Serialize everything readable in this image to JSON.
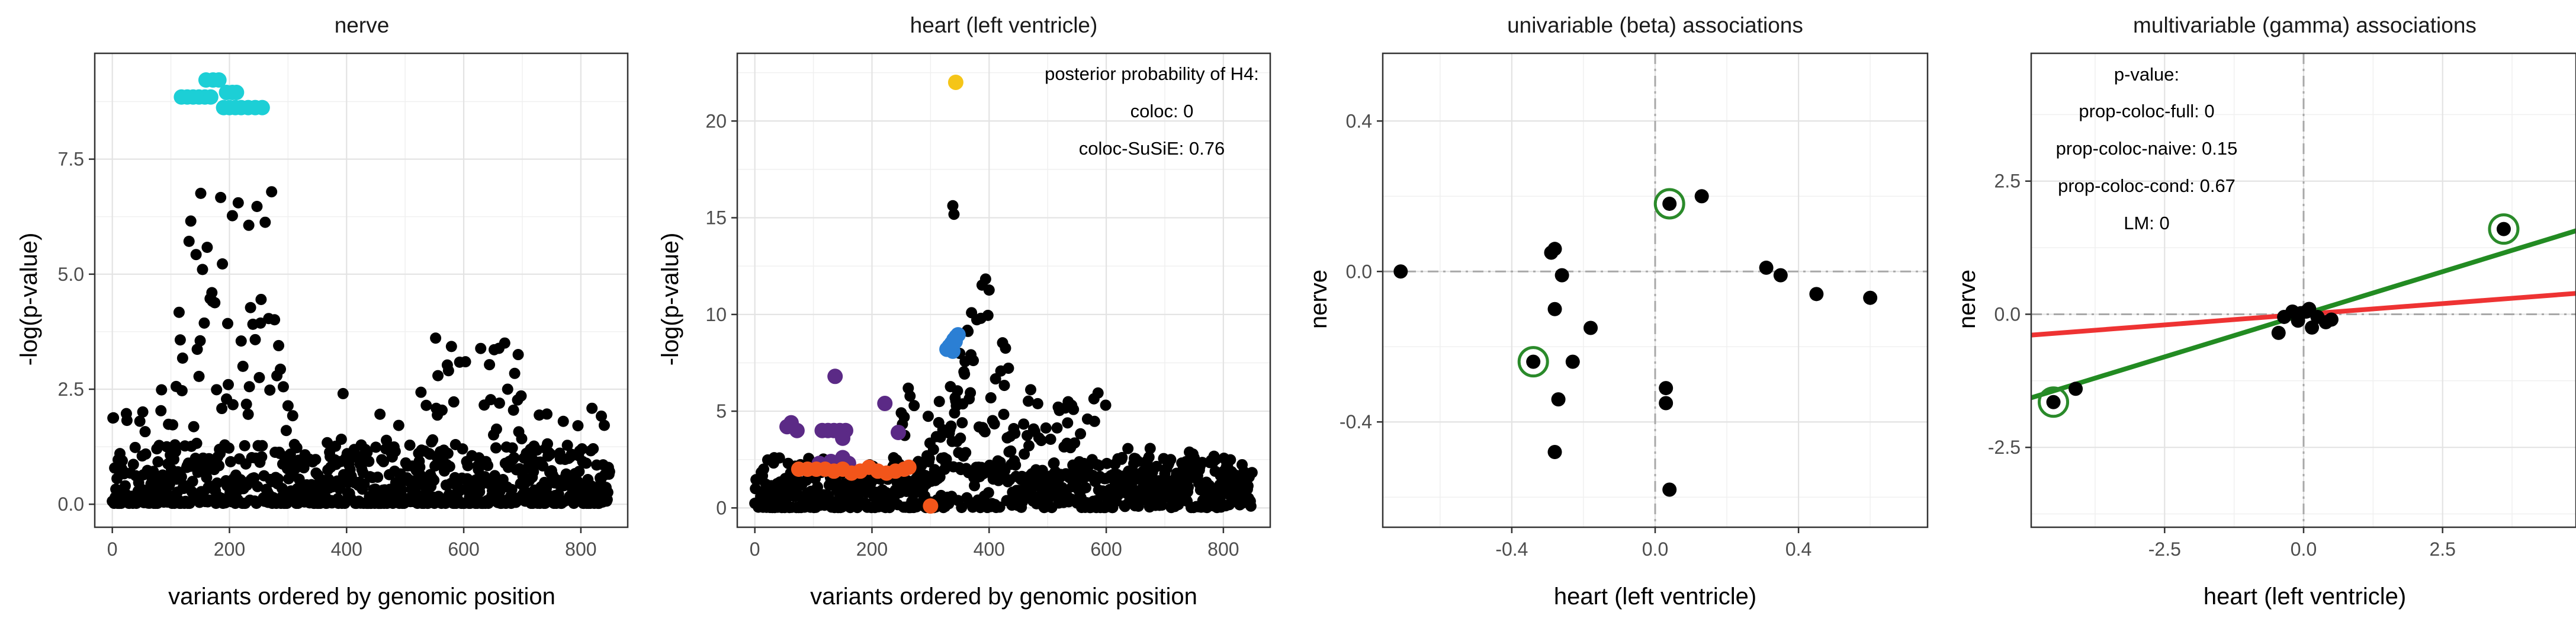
{
  "chart_data": [
    {
      "type": "scatter",
      "title": "nerve",
      "xlabel": "variants ordered by genomic position",
      "ylabel": "-log(p-value)",
      "xlim": [
        -30,
        880
      ],
      "ylim": [
        -0.5,
        9.8
      ],
      "xticks": [
        0,
        200,
        400,
        600,
        800
      ],
      "xtick_labels": [
        "0",
        "200",
        "400",
        "600",
        "800"
      ],
      "yticks": [
        0,
        2.5,
        5,
        7.5
      ],
      "ytick_labels": [
        "0.0",
        "2.5",
        "5.0",
        "7.5"
      ],
      "grid": true,
      "colors": {
        "background": "#000000",
        "highlight": "#1ccfd6"
      },
      "series": [
        {
          "color": "#000000",
          "role": "background",
          "n_points": 850,
          "seed": 11,
          "profile": "nerve"
        },
        {
          "color": "#1ccfd6",
          "role": "highlight",
          "points": [
            [
              118,
              8.85
            ],
            [
              128,
              8.85
            ],
            [
              138,
              8.85
            ],
            [
              148,
              8.85
            ],
            [
              158,
              8.85
            ],
            [
              168,
              8.85
            ],
            [
              160,
              9.22
            ],
            [
              172,
              9.22
            ],
            [
              182,
              9.22
            ],
            [
              195,
              8.95
            ],
            [
              205,
              8.95
            ],
            [
              212,
              8.95
            ],
            [
              190,
              8.62
            ],
            [
              200,
              8.62
            ],
            [
              210,
              8.62
            ],
            [
              220,
              8.62
            ],
            [
              232,
              8.62
            ],
            [
              244,
              8.62
            ],
            [
              256,
              8.62
            ]
          ]
        }
      ]
    },
    {
      "type": "scatter",
      "title": "heart (left ventricle)",
      "xlabel": "variants ordered by genomic position",
      "ylabel": "-log(p-value)",
      "xlim": [
        -30,
        880
      ],
      "ylim": [
        -1,
        23.5
      ],
      "xticks": [
        0,
        200,
        400,
        600,
        800
      ],
      "xtick_labels": [
        "0",
        "200",
        "400",
        "600",
        "800"
      ],
      "yticks": [
        0,
        5,
        10,
        15,
        20
      ],
      "ytick_labels": [
        "0",
        "5",
        "10",
        "15",
        "20"
      ],
      "grid": true,
      "annotation": [
        "posterior probability of H4:",
        "coloc: 0",
        "coloc-SuSiE: 0.76"
      ],
      "colors": {
        "background": "#000000",
        "gold": "#f5c518",
        "blue": "#2b7fd4",
        "purple": "#5b2a86",
        "orange": "#f2551a"
      },
      "series": [
        {
          "color": "#000000",
          "role": "background",
          "n_points": 850,
          "seed": 23,
          "profile": "heart"
        },
        {
          "color": "#f5c518",
          "role": "highlight",
          "points": [
            [
              343,
              22.0
            ]
          ]
        },
        {
          "color": "#2b7fd4",
          "role": "highlight",
          "points": [
            [
              328,
              8.2
            ],
            [
              332,
              8.35
            ],
            [
              336,
              8.5
            ],
            [
              340,
              8.7
            ],
            [
              344,
              8.85
            ],
            [
              347,
              8.95
            ],
            [
              338,
              8.1
            ],
            [
              342,
              8.6
            ]
          ]
        },
        {
          "color": "#5b2a86",
          "role": "highlight",
          "points": [
            [
              55,
              4.2
            ],
            [
              62,
              4.4
            ],
            [
              72,
              4.0
            ],
            [
              115,
              4.0
            ],
            [
              125,
              4.0
            ],
            [
              135,
              4.0
            ],
            [
              145,
              4.0
            ],
            [
              155,
              4.0
            ],
            [
              150,
              3.6
            ],
            [
              137,
              6.8
            ],
            [
              222,
              5.4
            ],
            [
              245,
              3.9
            ],
            [
              110,
              2.3
            ],
            [
              120,
              2.1
            ],
            [
              130,
              2.4
            ],
            [
              140,
              2.2
            ],
            [
              150,
              2.6
            ],
            [
              160,
              2.3
            ]
          ]
        },
        {
          "color": "#f2551a",
          "role": "highlight",
          "points": [
            [
              75,
              2.0
            ],
            [
              90,
              2.0
            ],
            [
              105,
              2.0
            ],
            [
              120,
              2.0
            ],
            [
              135,
              1.9
            ],
            [
              150,
              2.0
            ],
            [
              165,
              1.8
            ],
            [
              180,
              1.9
            ],
            [
              195,
              2.1
            ],
            [
              210,
              1.9
            ],
            [
              225,
              1.8
            ],
            [
              240,
              1.9
            ],
            [
              255,
              2.0
            ],
            [
              263,
              2.1
            ],
            [
              300,
              0.1
            ]
          ]
        }
      ]
    },
    {
      "type": "scatter",
      "title": "univariable (beta) associations",
      "xlabel": "heart (left ventricle)",
      "ylabel": "nerve",
      "xlim": [
        -0.76,
        0.76
      ],
      "ylim": [
        -0.68,
        0.58
      ],
      "xticks": [
        -0.4,
        0,
        0.4
      ],
      "xtick_labels": [
        "-0.4",
        "0.0",
        "0.4"
      ],
      "yticks": [
        -0.4,
        0,
        0.4
      ],
      "ytick_labels": [
        "-0.4",
        "0.0",
        "0.4"
      ],
      "grid": true,
      "reference_lines": {
        "x": 0,
        "y": 0,
        "style": "dashed",
        "color": "#a8a8a8"
      },
      "colors": {
        "points": "#000000",
        "ring": "#2a8a2a"
      },
      "points": [
        [
          -0.71,
          0.0
        ],
        [
          -0.34,
          -0.24
        ],
        [
          -0.29,
          0.05
        ],
        [
          -0.28,
          0.06
        ],
        [
          -0.26,
          -0.01
        ],
        [
          -0.28,
          -0.1
        ],
        [
          -0.27,
          -0.34
        ],
        [
          -0.28,
          -0.48
        ],
        [
          -0.23,
          -0.24
        ],
        [
          -0.18,
          -0.15
        ],
        [
          0.03,
          -0.31
        ],
        [
          0.03,
          -0.35
        ],
        [
          0.04,
          -0.58
        ],
        [
          0.04,
          0.18
        ],
        [
          0.13,
          0.2
        ],
        [
          0.31,
          0.01
        ],
        [
          0.35,
          -0.01
        ],
        [
          0.45,
          -0.06
        ],
        [
          0.6,
          -0.07
        ]
      ],
      "ringed_points": [
        [
          -0.34,
          -0.24
        ],
        [
          0.04,
          0.18
        ]
      ]
    },
    {
      "type": "scatter",
      "title": "multivariable (gamma) associations",
      "xlabel": "heart (left ventricle)",
      "ylabel": "nerve",
      "xlim": [
        -4.9,
        4.9
      ],
      "ylim": [
        -4.0,
        4.9
      ],
      "xticks": [
        -2.5,
        0,
        2.5
      ],
      "xtick_labels": [
        "-2.5",
        "0.0",
        "2.5"
      ],
      "yticks": [
        -2.5,
        0,
        2.5
      ],
      "ytick_labels": [
        "-2.5",
        "0.0",
        "2.5"
      ],
      "grid": true,
      "reference_lines": {
        "x": 0,
        "y": 0,
        "style": "dashed",
        "color": "#a8a8a8"
      },
      "annotation": [
        "p-value:",
        "prop-coloc-full: 0",
        "prop-coloc-naive: 0.15",
        "prop-coloc-cond: 0.67",
        "LM: 0"
      ],
      "fit_lines": [
        {
          "color": "#ee3333",
          "slope": 0.08,
          "intercept": 0.0
        },
        {
          "color": "#228b22",
          "slope": 0.32,
          "intercept": 0.0
        }
      ],
      "colors": {
        "points": "#000000",
        "ring": "#2a8a2a"
      },
      "points": [
        [
          -4.5,
          -1.65
        ],
        [
          -4.1,
          -1.4
        ],
        [
          -0.45,
          -0.35
        ],
        [
          -0.35,
          -0.05
        ],
        [
          -0.2,
          0.05
        ],
        [
          -0.05,
          0.02
        ],
        [
          0.05,
          0.05
        ],
        [
          0.1,
          0.1
        ],
        [
          0.15,
          -0.25
        ],
        [
          0.25,
          -0.05
        ],
        [
          0.4,
          -0.15
        ],
        [
          0.5,
          -0.1
        ],
        [
          -0.1,
          -0.12
        ],
        [
          3.6,
          1.6
        ]
      ],
      "ringed_points": [
        [
          -4.5,
          -1.65
        ],
        [
          3.6,
          1.6
        ]
      ]
    }
  ]
}
